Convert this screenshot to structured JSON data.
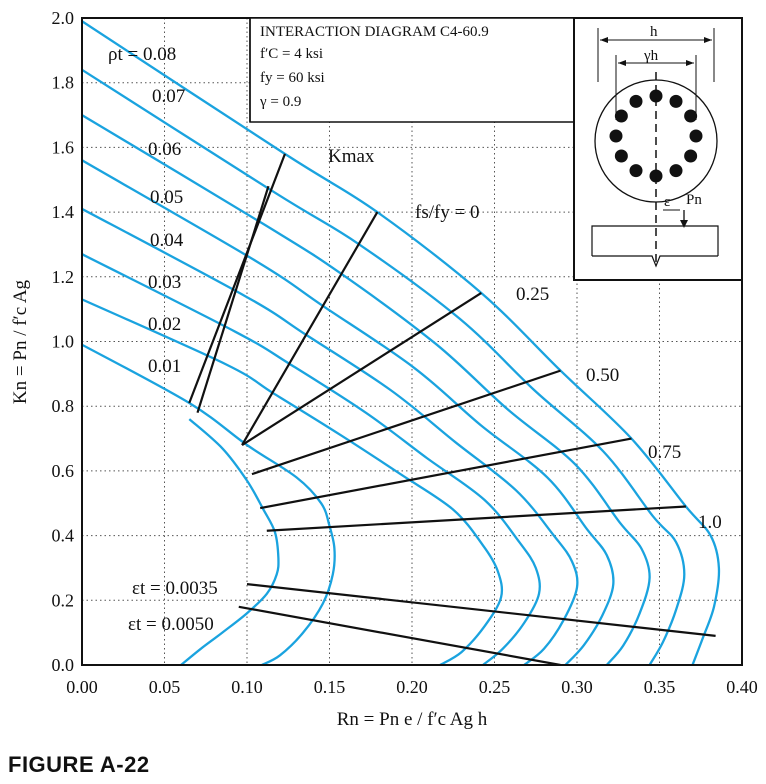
{
  "figure_label": "FIGURE A-22",
  "colors": {
    "curve": "#1aa3df",
    "line": "#111111"
  },
  "chart_data": {
    "type": "line",
    "title": "INTERACTION DIAGRAM C4-60.9",
    "params": [
      "f′C = 4 ksi",
      "fy = 60 ksi",
      "γ = 0.9"
    ],
    "xlabel": "Rn = Pn e / f′c Ag h",
    "ylabel": "Kn = Pn / f′c Ag",
    "xlim": [
      0,
      0.4
    ],
    "ylim": [
      0,
      2.0
    ],
    "x_ticks": [
      0,
      0.05,
      0.1,
      0.15,
      0.2,
      0.25,
      0.3,
      0.35,
      0.4
    ],
    "x_tick_labels": [
      "0.00",
      "0.05",
      "0.10",
      "0.15",
      "0.20",
      "0.25",
      "0.30",
      "0.35",
      "0.40"
    ],
    "y_ticks": [
      0,
      0.2,
      0.4,
      0.6,
      0.8,
      1.0,
      1.2,
      1.4,
      1.6,
      1.8,
      2.0
    ],
    "y_tick_labels": [
      "0.0",
      "0.2",
      "0.4",
      "0.6",
      "0.8",
      "1.0",
      "1.2",
      "1.4",
      "1.6",
      "1.8",
      "2.0"
    ],
    "grid": true,
    "curves": [
      {
        "label": "ρt = 0.08",
        "points": [
          [
            0,
            1.99
          ],
          [
            0.123,
            1.58
          ],
          [
            0.179,
            1.4
          ],
          [
            0.242,
            1.15
          ],
          [
            0.29,
            0.91
          ],
          [
            0.333,
            0.7
          ],
          [
            0.366,
            0.49
          ],
          [
            0.381,
            0.4
          ],
          [
            0.386,
            0.3
          ],
          [
            0.383,
            0.18
          ],
          [
            0.376,
            0.08
          ],
          [
            0.37,
            0
          ]
        ]
      },
      {
        "label": "0.07",
        "points": [
          [
            0,
            1.84
          ],
          [
            0.117,
            1.46
          ],
          [
            0.168,
            1.3
          ],
          [
            0.229,
            1.07
          ],
          [
            0.274,
            0.85
          ],
          [
            0.316,
            0.66
          ],
          [
            0.346,
            0.46
          ],
          [
            0.36,
            0.38
          ],
          [
            0.365,
            0.28
          ],
          [
            0.36,
            0.17
          ],
          [
            0.352,
            0.07
          ],
          [
            0.344,
            0
          ]
        ]
      },
      {
        "label": "0.06",
        "points": [
          [
            0,
            1.7
          ],
          [
            0.111,
            1.36
          ],
          [
            0.157,
            1.21
          ],
          [
            0.215,
            0.99
          ],
          [
            0.258,
            0.79
          ],
          [
            0.299,
            0.62
          ],
          [
            0.326,
            0.44
          ],
          [
            0.339,
            0.36
          ],
          [
            0.344,
            0.27
          ],
          [
            0.338,
            0.16
          ],
          [
            0.328,
            0.06
          ],
          [
            0.318,
            0
          ]
        ]
      },
      {
        "label": "0.05",
        "points": [
          [
            0,
            1.56
          ],
          [
            0.105,
            1.25
          ],
          [
            0.146,
            1.11
          ],
          [
            0.201,
            0.92
          ],
          [
            0.242,
            0.74
          ],
          [
            0.282,
            0.58
          ],
          [
            0.306,
            0.42
          ],
          [
            0.318,
            0.34
          ],
          [
            0.322,
            0.25
          ],
          [
            0.315,
            0.15
          ],
          [
            0.304,
            0.06
          ],
          [
            0.293,
            0
          ]
        ]
      },
      {
        "label": "0.04",
        "points": [
          [
            0,
            1.41
          ],
          [
            0.099,
            1.14
          ],
          [
            0.136,
            1.02
          ],
          [
            0.187,
            0.85
          ],
          [
            0.226,
            0.69
          ],
          [
            0.263,
            0.54
          ],
          [
            0.286,
            0.4
          ],
          [
            0.297,
            0.32
          ],
          [
            0.3,
            0.24
          ],
          [
            0.292,
            0.14
          ],
          [
            0.28,
            0.05
          ],
          [
            0.268,
            0
          ]
        ]
      },
      {
        "label": "0.03",
        "points": [
          [
            0,
            1.27
          ],
          [
            0.093,
            1.03
          ],
          [
            0.126,
            0.93
          ],
          [
            0.172,
            0.78
          ],
          [
            0.209,
            0.64
          ],
          [
            0.244,
            0.51
          ],
          [
            0.265,
            0.38
          ],
          [
            0.275,
            0.3
          ],
          [
            0.277,
            0.22
          ],
          [
            0.268,
            0.13
          ],
          [
            0.255,
            0.05
          ],
          [
            0.243,
            0
          ]
        ]
      },
      {
        "label": "0.02",
        "points": [
          [
            0,
            1.13
          ],
          [
            0.087,
            0.93
          ],
          [
            0.116,
            0.84
          ],
          [
            0.157,
            0.71
          ],
          [
            0.193,
            0.59
          ],
          [
            0.225,
            0.48
          ],
          [
            0.243,
            0.37
          ],
          [
            0.252,
            0.29
          ],
          [
            0.254,
            0.21
          ],
          [
            0.244,
            0.12
          ],
          [
            0.23,
            0.04
          ],
          [
            0.217,
            0
          ]
        ]
      },
      {
        "label": "0.01",
        "points": [
          [
            0,
            0.99
          ],
          [
            0.065,
            0.81
          ],
          [
            0.1,
            0.68
          ],
          [
            0.13,
            0.58
          ],
          [
            0.145,
            0.5
          ],
          [
            0.15,
            0.43
          ],
          [
            0.153,
            0.36
          ],
          [
            0.152,
            0.28
          ],
          [
            0.146,
            0.19
          ],
          [
            0.134,
            0.1
          ],
          [
            0.12,
            0.03
          ],
          [
            0.109,
            0
          ]
        ]
      },
      {
        "label": "",
        "points": [
          [
            0.06,
            0
          ],
          [
            0.072,
            0.05
          ],
          [
            0.085,
            0.1
          ],
          [
            0.1,
            0.16
          ],
          [
            0.112,
            0.22
          ],
          [
            0.118,
            0.28
          ],
          [
            0.119,
            0.33
          ],
          [
            0.117,
            0.41
          ],
          [
            0.11,
            0.48
          ],
          [
            0.1,
            0.57
          ],
          [
            0.085,
            0.67
          ],
          [
            0.065,
            0.76
          ]
        ]
      }
    ],
    "radial_lines": [
      {
        "label": "Kmax",
        "points": [
          [
            0.065,
            0.81
          ],
          [
            0.123,
            1.58
          ]
        ]
      },
      {
        "label": "",
        "points": [
          [
            0.07,
            0.78
          ],
          [
            0.113,
            1.48
          ]
        ]
      },
      {
        "label": "fs/fy = 0",
        "points": [
          [
            0.097,
            0.68
          ],
          [
            0.179,
            1.4
          ]
        ]
      },
      {
        "label": "0.25",
        "points": [
          [
            0.097,
            0.68
          ],
          [
            0.242,
            1.15
          ]
        ]
      },
      {
        "label": "0.50",
        "points": [
          [
            0.103,
            0.59
          ],
          [
            0.29,
            0.91
          ]
        ]
      },
      {
        "label": "0.75",
        "points": [
          [
            0.108,
            0.485
          ],
          [
            0.333,
            0.7
          ]
        ]
      },
      {
        "label": "1.0",
        "points": [
          [
            0.112,
            0.415
          ],
          [
            0.366,
            0.49
          ]
        ]
      },
      {
        "label": "εt = 0.0035",
        "points": [
          [
            0.1,
            0.25
          ],
          [
            0.384,
            0.09
          ]
        ]
      },
      {
        "label": "εt = 0.0050",
        "points": [
          [
            0.095,
            0.18
          ],
          [
            0.29,
            0
          ]
        ]
      }
    ],
    "inset": {
      "labels": [
        "h",
        "γh",
        "ε",
        "Pn"
      ]
    }
  }
}
